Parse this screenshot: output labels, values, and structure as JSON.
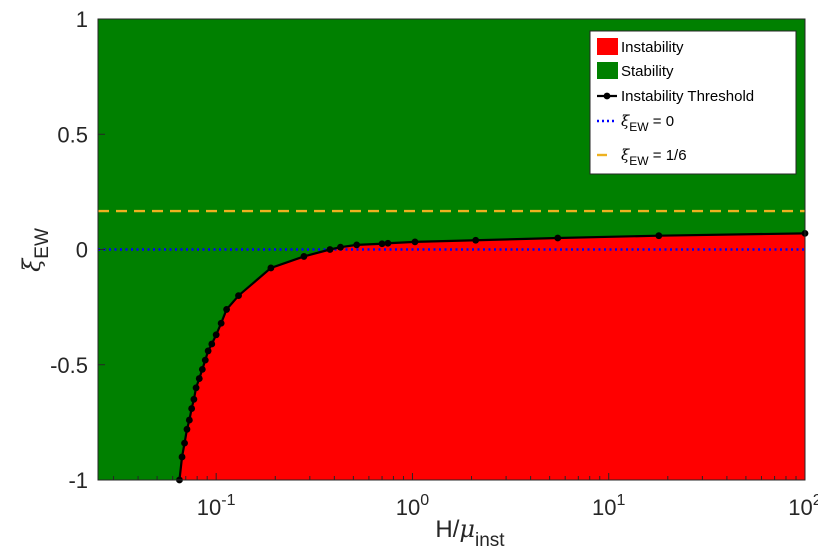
{
  "chart_data": {
    "type": "area",
    "title": "",
    "xlabel": {
      "main": "H/",
      "greek": "μ",
      "sub": "inst"
    },
    "ylabel": {
      "greek": "ξ",
      "sub": "EW"
    },
    "xscale": "log",
    "xlim": [
      0.025,
      100
    ],
    "ylim": [
      -1,
      1
    ],
    "grid": false,
    "legend_placement": "top-right",
    "x_ticks": [
      {
        "value": 0.1,
        "base": "10",
        "exp": "-1"
      },
      {
        "value": 1,
        "base": "10",
        "exp": "0"
      },
      {
        "value": 10,
        "base": "10",
        "exp": "1"
      },
      {
        "value": 100,
        "base": "10",
        "exp": "2"
      }
    ],
    "y_ticks": [
      {
        "value": 1,
        "label": "1"
      },
      {
        "value": 0.5,
        "label": "0.5"
      },
      {
        "value": 0,
        "label": "0"
      },
      {
        "value": -0.5,
        "label": "-0.5"
      },
      {
        "value": -1,
        "label": "-1"
      }
    ],
    "regions": [
      {
        "name": "Instability",
        "color": "#ff0000",
        "side": "below-threshold"
      },
      {
        "name": "Stability",
        "color": "#008000",
        "side": "above-threshold"
      }
    ],
    "series": [
      {
        "name": "Instability Threshold",
        "style": "solid-line-with-dots",
        "color": "#000000",
        "x": [
          0.065,
          0.067,
          0.069,
          0.071,
          0.073,
          0.075,
          0.077,
          0.079,
          0.082,
          0.085,
          0.088,
          0.091,
          0.095,
          0.1,
          0.106,
          0.113,
          0.13,
          0.19,
          0.28,
          0.38,
          0.43,
          0.52,
          0.7,
          0.75,
          1.03,
          2.1,
          5.5,
          18,
          100
        ],
        "y": [
          -1.0,
          -0.9,
          -0.84,
          -0.78,
          -0.74,
          -0.69,
          -0.65,
          -0.6,
          -0.56,
          -0.52,
          -0.48,
          -0.44,
          -0.41,
          -0.37,
          -0.32,
          -0.26,
          -0.2,
          -0.08,
          -0.03,
          0.0,
          0.01,
          0.02,
          0.025,
          0.027,
          0.033,
          0.04,
          0.05,
          0.06,
          0.07
        ]
      },
      {
        "name": "ξ_EW = 0",
        "style": "dotted",
        "color": "#0000ff",
        "y": 0
      },
      {
        "name": "ξ_EW = 1/6",
        "style": "dashed",
        "color": "#edb120",
        "y": 0.1667
      }
    ],
    "legend": [
      {
        "kind": "patch",
        "color": "#ff0000",
        "label": "Instability"
      },
      {
        "kind": "patch",
        "color": "#008000",
        "label": "Stability"
      },
      {
        "kind": "line-dot",
        "color": "#000000",
        "label": "Instability Threshold"
      },
      {
        "kind": "dotted",
        "color": "#0000ff",
        "greek": "ξ",
        "sub": "EW",
        "rest": " = 0"
      },
      {
        "kind": "dashed",
        "color": "#edb120",
        "greek": "ξ",
        "sub": "EW",
        "rest": " = 1/6"
      }
    ]
  }
}
